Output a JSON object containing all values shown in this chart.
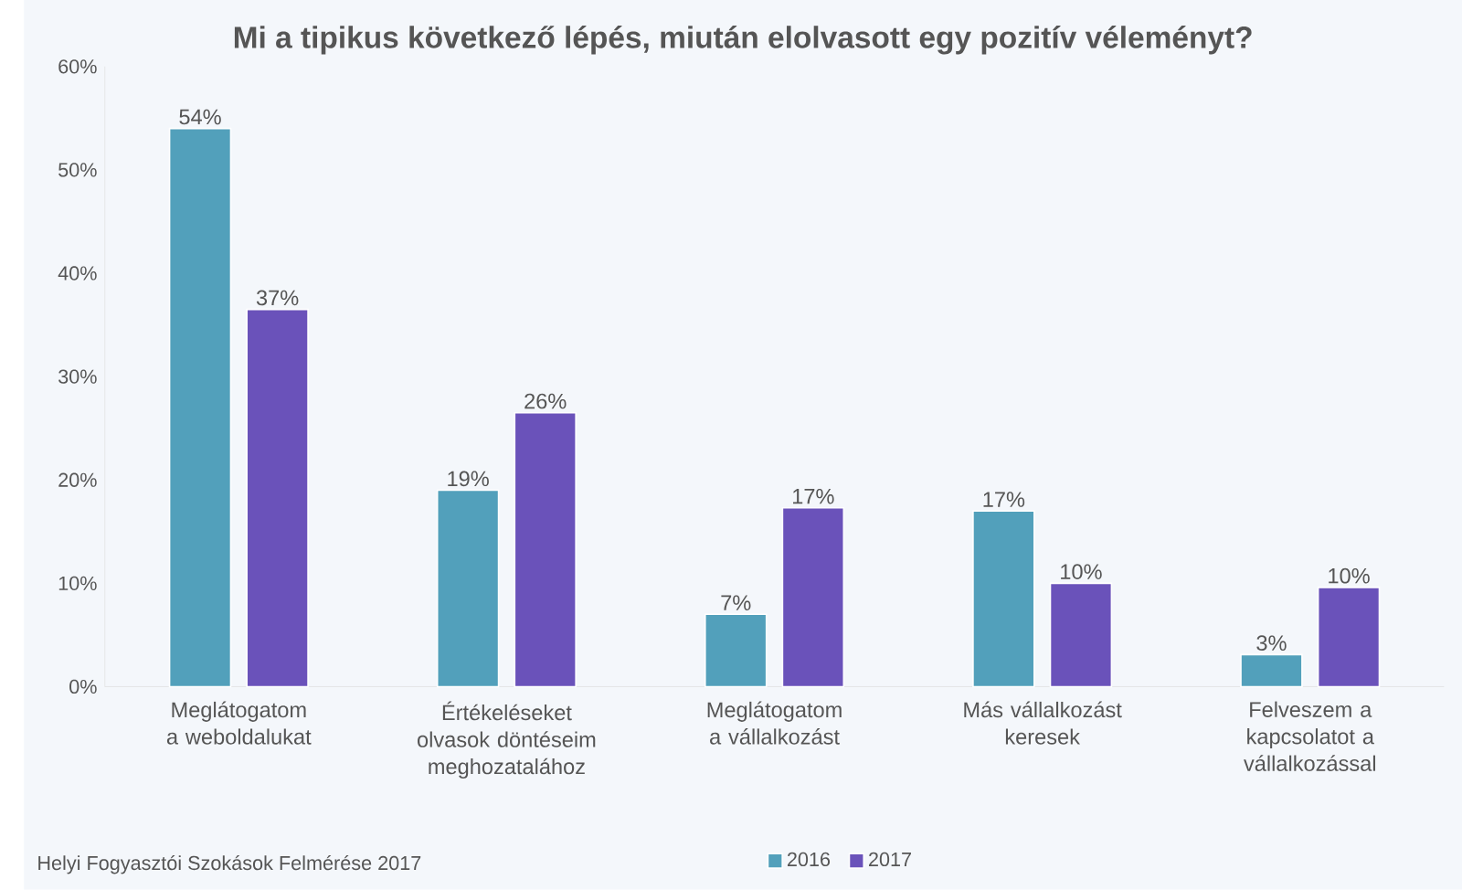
{
  "chart_data": {
    "type": "bar",
    "title": "Mi a tipikus következő lépés, miután elolvasott egy pozitív véleményt?",
    "categories": [
      "Meglátogatom a weboldalukat",
      "Értékeléseket olvasok döntéseim meghozatalához",
      "Meglátogatom a vállalkozást",
      "Más vállalkozást keresek",
      "Felveszem a kapcsolatot a vállalkozással"
    ],
    "series": [
      {
        "name": "2016",
        "color": "#52a0bb",
        "values": [
          54,
          19,
          7,
          17,
          3.1
        ],
        "value_labels": [
          "54%",
          "19%",
          "7%",
          "17%",
          "3%"
        ]
      },
      {
        "name": "2017",
        "color": "#6a52ba",
        "values": [
          36.5,
          26.5,
          17.3,
          10,
          9.6
        ],
        "value_labels": [
          "37%",
          "26%",
          "17%",
          "10%",
          "10%"
        ]
      }
    ],
    "ylim": [
      0,
      60
    ],
    "yticks": [
      {
        "value": 0,
        "label": "0%"
      },
      {
        "value": 10,
        "label": "10%"
      },
      {
        "value": 20,
        "label": "20%"
      },
      {
        "value": 30,
        "label": "30%"
      },
      {
        "value": 40,
        "label": "40%"
      },
      {
        "value": 50,
        "label": "50%"
      },
      {
        "value": 60,
        "label": "60%"
      }
    ],
    "legend": "bottom",
    "annotations": [
      "Helyi Fogyasztói Szokások Felmérése 2017"
    ]
  }
}
